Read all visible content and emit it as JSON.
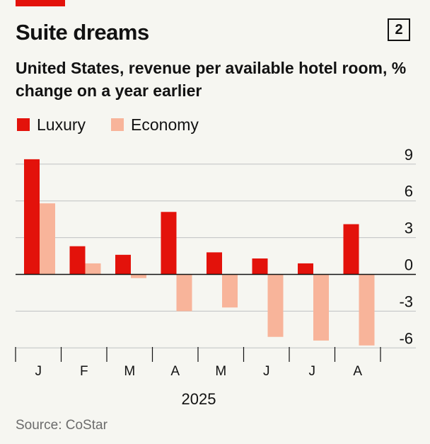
{
  "header": {
    "title": "Suite dreams",
    "chart_number": "2"
  },
  "subtitle": "United States, revenue per available hotel room, % change on a year earlier",
  "source": "Source: CoStar",
  "colors": {
    "luxury": "#e3120b",
    "economy": "#f8b49a",
    "accent": "#e3120b"
  },
  "chart_data": {
    "type": "bar",
    "title": "Suite dreams",
    "subtitle": "United States, revenue per available hotel room, % change on a year earlier",
    "categories": [
      "J",
      "F",
      "M",
      "A",
      "M",
      "J",
      "J",
      "A"
    ],
    "x_group_label": "2025",
    "series": [
      {
        "name": "Luxury",
        "values": [
          9.4,
          2.3,
          1.6,
          5.1,
          1.8,
          1.3,
          0.9,
          4.1
        ]
      },
      {
        "name": "Economy",
        "values": [
          5.8,
          0.9,
          -0.3,
          -3.0,
          -2.7,
          -5.1,
          -5.4,
          -5.8
        ]
      }
    ],
    "yticks": [
      9,
      6,
      3,
      0,
      -3,
      -6
    ],
    "ytick_labels": [
      "9",
      "6",
      "3",
      "0",
      "-3",
      "-6"
    ],
    "ylim": [
      -7,
      10
    ],
    "grid": true,
    "legend": "top-left",
    "xlabel": "",
    "ylabel": ""
  }
}
